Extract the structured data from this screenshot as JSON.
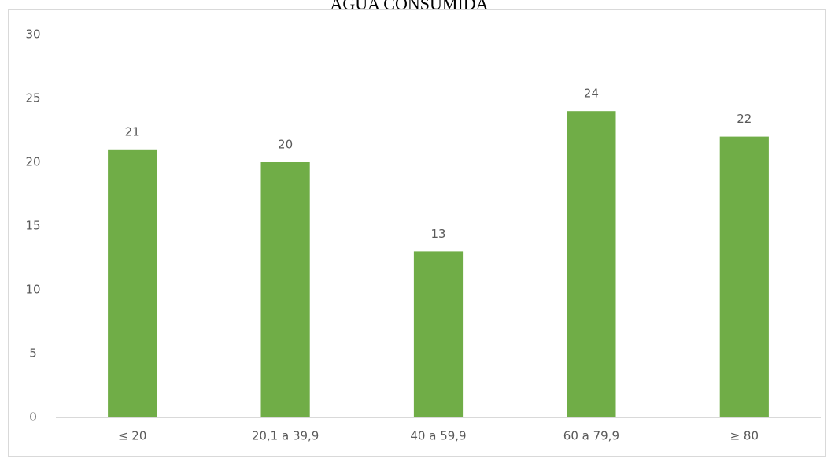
{
  "chart_data": {
    "type": "bar",
    "title": "ÁGUA CONSUMIDA",
    "categories": [
      "≤ 20",
      "20,1 a 39,9",
      "40 a 59,9",
      "60 a 79,9",
      "≥ 80"
    ],
    "values": [
      21,
      20,
      13,
      24,
      22
    ],
    "color": "#70ad47",
    "ylim": [
      0,
      30
    ],
    "yticks": [
      0,
      5,
      10,
      15,
      20,
      25,
      30
    ],
    "grid": false
  }
}
